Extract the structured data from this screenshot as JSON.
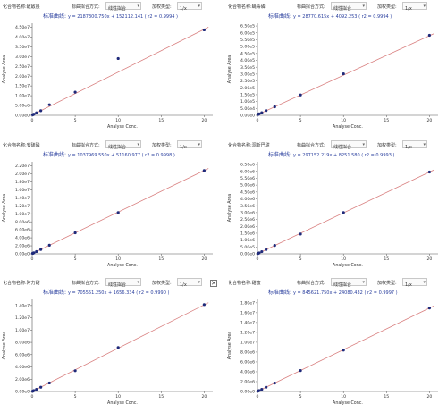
{
  "ui": {
    "compound_label": "化合物名称:",
    "fit_label": "标曲拟合方式:",
    "fit_value": "线性拟合",
    "weight_label": "加权类型:",
    "weight_value": "1/x",
    "curve_label": "标准曲线:"
  },
  "panels": [
    {
      "compound": "敌敌畏",
      "equation": "y = 2187300.750x + 152112.141 ( r2 = 0.9994 )",
      "show_close": false,
      "chart_data": {
        "type": "scatter",
        "x": [
          0.05,
          0.1,
          0.2,
          0.5,
          1,
          2,
          5,
          10,
          20
        ],
        "y": [
          260000,
          370000,
          590000,
          1240000,
          2340000,
          5400000,
          11800000,
          29000000,
          43600000
        ],
        "fit": {
          "slope": 2187300.75,
          "intercept": 152112.141
        },
        "xlabel": "Analyse Conc.",
        "ylabel": "Analyse Area",
        "xticks": [
          0,
          5,
          10,
          15,
          20
        ],
        "xtick_labels": [
          "0",
          "5",
          "10",
          "15",
          "20"
        ],
        "xlim": [
          0,
          21
        ],
        "yticks": [
          0,
          5000000,
          10000000,
          15000000,
          20000000,
          25000000,
          30000000,
          35000000,
          40000000,
          45000000
        ],
        "ytick_labels": [
          "0.00e0",
          "5.00e6",
          "1.00e7",
          "1.50e7",
          "2.00e7",
          "2.50e7",
          "3.00e7",
          "3.50e7",
          "4.00e7",
          "4.50e7"
        ],
        "ylim": [
          0,
          47000000
        ]
      }
    },
    {
      "compound": "蝇毒磷",
      "equation": "y = 28770.615x + 4092.253 ( r2 = 0.9994 )",
      "show_close": false,
      "chart_data": {
        "type": "scatter",
        "x": [
          0.05,
          0.1,
          0.2,
          0.5,
          1,
          2,
          5,
          10,
          20
        ],
        "y": [
          6000,
          8000,
          11000,
          19000,
          34000,
          62000,
          148000,
          302000,
          582000
        ],
        "fit": {
          "slope": 28770.615,
          "intercept": 4092.253
        },
        "xlabel": "Analyse Conc.",
        "ylabel": "Analyse Area",
        "xticks": [
          0,
          5,
          10,
          15,
          20
        ],
        "xtick_labels": [
          "0",
          "5",
          "10",
          "15",
          "20"
        ],
        "xlim": [
          0,
          21
        ],
        "yticks": [
          0,
          50000,
          100000,
          150000,
          200000,
          250000,
          300000,
          350000,
          400000,
          450000,
          500000,
          550000,
          600000,
          650000
        ],
        "ytick_labels": [
          "0.00e0",
          "5.00e4",
          "1.00e5",
          "1.50e5",
          "2.00e5",
          "2.50e5",
          "3.00e5",
          "3.50e5",
          "4.00e5",
          "4.50e5",
          "5.00e5",
          "5.50e5",
          "6.00e5",
          "6.50e5"
        ],
        "ylim": [
          0,
          670000
        ]
      }
    },
    {
      "compound": "安硫磷",
      "equation": "y = 1037969.550x + 51160.977 ( r2 = 0.9998 )",
      "show_close": false,
      "chart_data": {
        "type": "scatter",
        "x": [
          0.05,
          0.1,
          0.2,
          0.5,
          1,
          2,
          5,
          10,
          20
        ],
        "y": [
          105000,
          155000,
          260000,
          570000,
          1080000,
          2150000,
          5250000,
          10300000,
          20800000
        ],
        "fit": {
          "slope": 1037969.55,
          "intercept": 51160.977
        },
        "xlabel": "Analyse Conc.",
        "ylabel": "Analyse Area",
        "xticks": [
          0,
          5,
          10,
          15,
          20
        ],
        "xtick_labels": [
          "0",
          "5",
          "10",
          "15",
          "20"
        ],
        "xlim": [
          0,
          21
        ],
        "yticks": [
          0,
          2000000,
          4000000,
          6000000,
          8000000,
          10000000,
          12000000,
          14000000,
          16000000,
          18000000,
          20000000,
          22000000
        ],
        "ytick_labels": [
          "0.00e0",
          "2.00e6",
          "4.00e6",
          "6.00e6",
          "8.00e6",
          "1.00e7",
          "1.20e7",
          "1.40e7",
          "1.60e7",
          "1.80e7",
          "2.00e7",
          "2.20e7"
        ],
        "ylim": [
          0,
          23000000
        ]
      }
    },
    {
      "compound": "洞斯巴甜",
      "equation": "y = 297152.219x + 8251.580 ( r2 = 0.9993 )",
      "show_close": false,
      "chart_data": {
        "type": "scatter",
        "x": [
          0.05,
          0.1,
          0.2,
          0.5,
          1,
          2,
          5,
          10,
          20
        ],
        "y": [
          25000,
          38000,
          68000,
          160000,
          310000,
          610000,
          1440000,
          3000000,
          5950000
        ],
        "fit": {
          "slope": 297152.219,
          "intercept": 8251.58
        },
        "xlabel": "Analyse Conc.",
        "ylabel": "Analyse Area",
        "xticks": [
          0,
          5,
          10,
          15,
          20
        ],
        "xtick_labels": [
          "0",
          "5",
          "10",
          "15",
          "20"
        ],
        "xlim": [
          0,
          21
        ],
        "yticks": [
          0,
          500000,
          1000000,
          1500000,
          2000000,
          2500000,
          3000000,
          3500000,
          4000000,
          4500000,
          5000000,
          5500000,
          6000000,
          6500000
        ],
        "ytick_labels": [
          "0.00e0",
          "5.00e5",
          "1.00e6",
          "1.50e6",
          "2.00e6",
          "2.50e6",
          "3.00e6",
          "3.50e6",
          "4.00e6",
          "4.50e6",
          "5.00e6",
          "5.50e6",
          "6.00e6",
          "6.50e6"
        ],
        "ylim": [
          0,
          6700000
        ]
      }
    },
    {
      "compound": "阿力甜",
      "equation": "y = 705551.250x + 1656.334 ( r2 = 0.9990 )",
      "show_close": true,
      "close_label": "✕",
      "chart_data": {
        "type": "scatter",
        "x": [
          0.05,
          0.1,
          0.2,
          0.5,
          1,
          2,
          5,
          10,
          20
        ],
        "y": [
          36000,
          72000,
          143000,
          355000,
          700000,
          1390000,
          3380000,
          7150000,
          14150000
        ],
        "fit": {
          "slope": 705551.25,
          "intercept": 1656.334
        },
        "xlabel": "Analyse Conc.",
        "ylabel": "Analyse Area",
        "xticks": [
          0,
          5,
          10,
          15,
          20
        ],
        "xtick_labels": [
          "0",
          "5",
          "10",
          "15",
          "20"
        ],
        "xlim": [
          0,
          21
        ],
        "yticks": [
          0,
          2000000,
          4000000,
          6000000,
          8000000,
          10000000,
          12000000,
          14000000
        ],
        "ytick_labels": [
          "0.00e0",
          "2.00e6",
          "4.00e6",
          "6.00e6",
          "8.00e6",
          "1.00e7",
          "1.20e7",
          "1.40e7"
        ],
        "ylim": [
          0,
          15000000
        ]
      }
    },
    {
      "compound": "甜蜜",
      "equation": "y = 845621.750x + 24080.432 ( r2 = 0.9997 )",
      "show_close": false,
      "chart_data": {
        "type": "scatter",
        "x": [
          0.05,
          0.1,
          0.2,
          0.5,
          1,
          2,
          5,
          10,
          20
        ],
        "y": [
          70000,
          110000,
          190000,
          440000,
          870000,
          1710000,
          4250000,
          8400000,
          16950000
        ],
        "fit": {
          "slope": 845621.75,
          "intercept": 24080.432
        },
        "xlabel": "Analyse Conc.",
        "ylabel": "Analyse Area",
        "xticks": [
          0,
          5,
          10,
          15,
          20
        ],
        "xtick_labels": [
          "0",
          "5",
          "10",
          "15",
          "20"
        ],
        "xlim": [
          0,
          21
        ],
        "yticks": [
          0,
          2000000,
          4000000,
          6000000,
          8000000,
          10000000,
          12000000,
          14000000,
          16000000,
          18000000
        ],
        "ytick_labels": [
          "0.00e0",
          "2.00e6",
          "4.00e6",
          "6.00e6",
          "8.00e6",
          "1.00e7",
          "1.20e7",
          "1.40e7",
          "1.60e7",
          "1.80e7"
        ],
        "ylim": [
          0,
          18700000
        ]
      }
    }
  ],
  "colors": {
    "fit_line": "#d98080",
    "point": "#1f2a7a",
    "axis": "#555555",
    "equation": "#2a3f9e"
  }
}
